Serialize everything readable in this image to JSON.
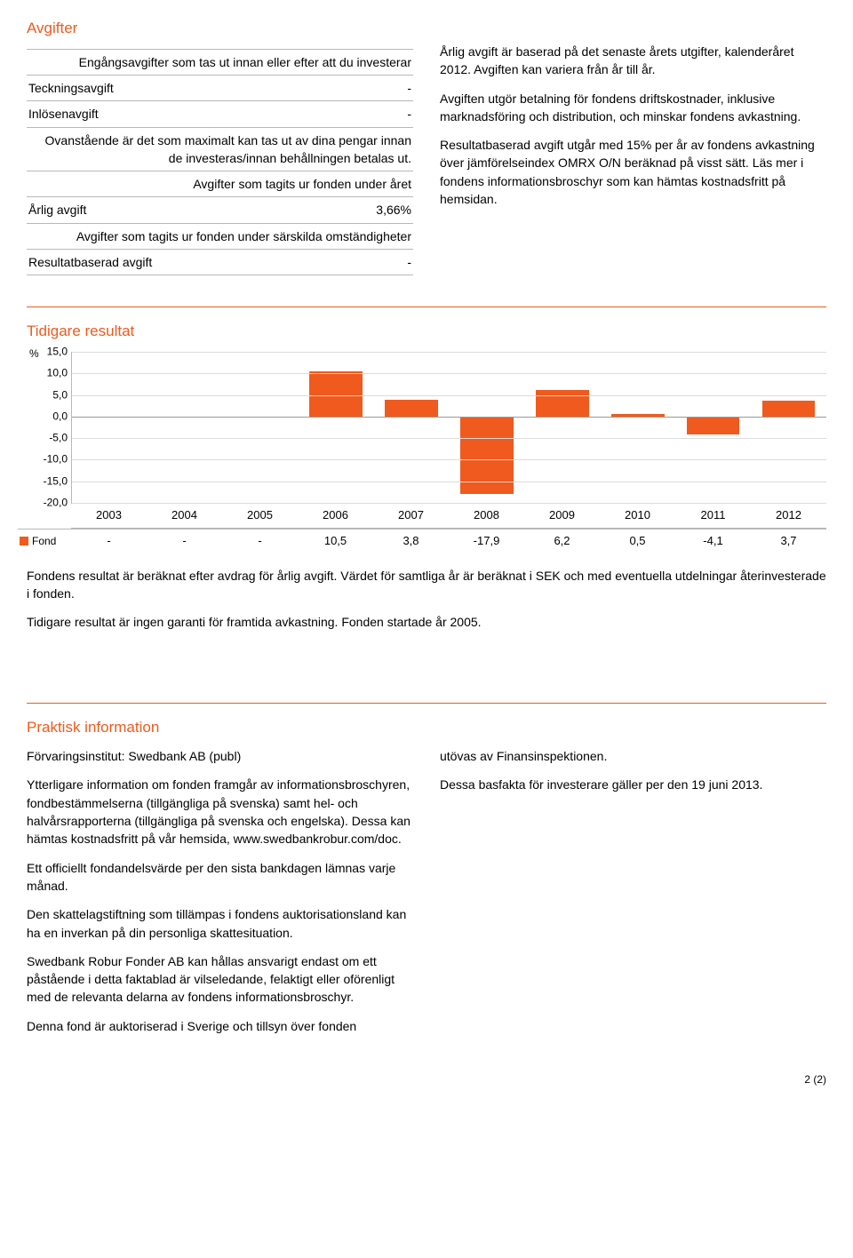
{
  "colors": {
    "accent": "#f05a1e",
    "border": "#b8b8b8",
    "grid": "#dcdcdc",
    "text": "#000000",
    "background": "#ffffff"
  },
  "avgifter": {
    "title": "Avgifter",
    "subhead1": "Engångsavgifter som tas ut innan eller efter att du investerar",
    "rows1": [
      {
        "label": "Teckningsavgift",
        "value": "-"
      },
      {
        "label": "Inlösenavgift",
        "value": "-"
      }
    ],
    "note1": "Ovanstående är det som maximalt kan tas ut av dina pengar innan de investeras/innan behållningen betalas ut.",
    "subhead2": "Avgifter som tagits ur fonden under året",
    "rows2": [
      {
        "label": "Årlig avgift",
        "value": "3,66%"
      }
    ],
    "subhead3": "Avgifter som tagits ur fonden under särskilda omständigheter",
    "rows3": [
      {
        "label": "Resultatbaserad avgift",
        "value": "-"
      }
    ],
    "right_paras": [
      "Årlig avgift är baserad på det senaste årets utgifter, kalenderåret 2012. Avgiften kan variera från år till år.",
      "Avgiften utgör betalning för fondens driftskostnader, inklusive marknadsföring och distribution, och minskar fondens avkastning.",
      "Resultatbaserad avgift utgår med 15% per år av fondens avkastning över jämförelseindex OMRX O/N beräknad på visst sätt. Läs mer i fondens informationsbroschyr som kan hämtas kostnadsfritt på hemsidan."
    ]
  },
  "resultat": {
    "title": "Tidigare resultat",
    "chart": {
      "type": "bar",
      "years": [
        "2003",
        "2004",
        "2005",
        "2006",
        "2007",
        "2008",
        "2009",
        "2010",
        "2011",
        "2012"
      ],
      "values": [
        null,
        null,
        null,
        10.5,
        3.8,
        -17.9,
        6.2,
        0.5,
        -4.1,
        3.7
      ],
      "display_values": [
        "-",
        "-",
        "-",
        "10,5",
        "3,8",
        "-17,9",
        "6,2",
        "0,5",
        "-4,1",
        "3,7"
      ],
      "bar_color": "#f05a1e",
      "y_ticks": [
        "15,0",
        "10,0",
        "5,0",
        "0,0",
        "-5,0",
        "-10,0",
        "-15,0",
        "-20,0"
      ],
      "y_max": 15,
      "y_min": -20,
      "y_step": 5,
      "pct_symbol": "%",
      "legend_label": "Fond",
      "grid_color": "#dcdcdc",
      "baseline_color": "#999999"
    },
    "paras": [
      "Fondens resultat är beräknat efter avdrag för årlig avgift. Värdet för samtliga år är beräknat i SEK och med eventuella utdelningar återinvesterade i fonden.",
      "Tidigare resultat är ingen garanti för framtida avkastning. Fonden startade år 2005."
    ]
  },
  "praktisk": {
    "title": "Praktisk information",
    "left_paras": [
      "Förvaringsinstitut: Swedbank AB (publ)",
      "Ytterligare information om fonden framgår av informationsbroschyren, fondbestämmelserna (tillgängliga på svenska) samt hel- och halvårsrapporterna (tillgängliga på svenska och engelska). Dessa kan hämtas kostnadsfritt på vår hemsida, www.swedbankrobur.com/doc.",
      "Ett officiellt fondandelsvärde per den sista bankdagen lämnas varje månad.",
      "Den skattelagstiftning som tillämpas i fondens auktorisationsland kan ha en inverkan på din personliga skattesituation.",
      "Swedbank Robur Fonder AB kan hållas ansvarigt endast om ett påstående i detta faktablad är vilseledande, felaktigt eller oförenligt med de relevanta delarna av fondens informationsbroschyr.",
      "Denna fond är auktoriserad i Sverige och tillsyn över fonden"
    ],
    "right_paras": [
      "utövas av Finansinspektionen.",
      "Dessa basfakta för investerare gäller per den 19 juni 2013."
    ]
  },
  "footer": "2 (2)"
}
